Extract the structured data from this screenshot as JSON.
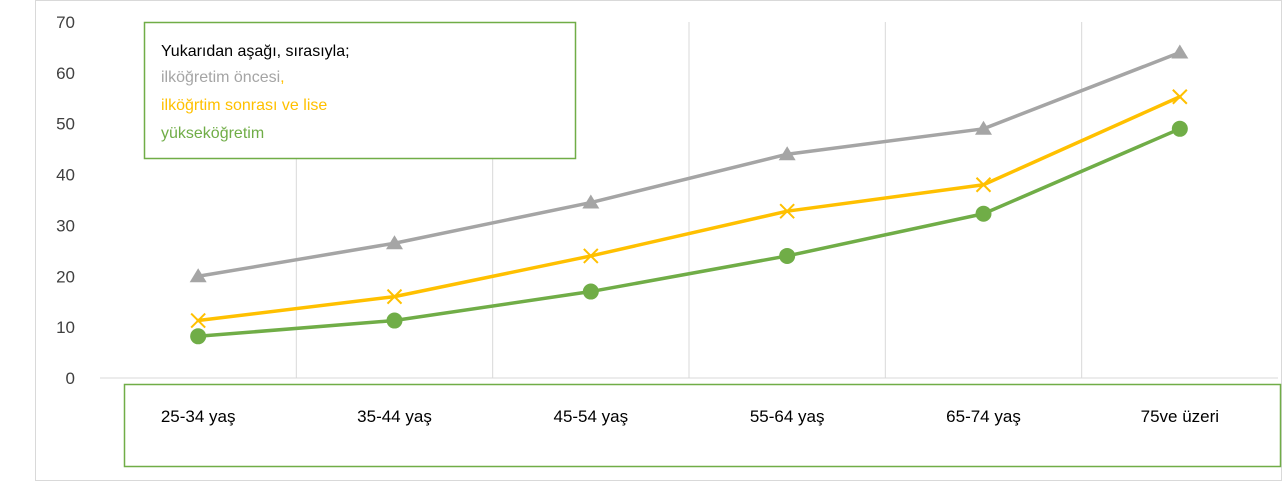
{
  "chart_data": {
    "type": "line",
    "categories": [
      "25-34 yaş",
      "35-44 yaş",
      "45-54 yaş",
      "55-64 yaş",
      "65-74 yaş",
      "75ve üzeri"
    ],
    "series": [
      {
        "values": [
          20,
          26.5,
          34.5,
          44,
          49,
          64
        ],
        "color": "#a5a5a5",
        "marker": "triangle"
      },
      {
        "values": [
          11.3,
          16,
          24,
          32.8,
          38,
          55.3
        ],
        "color": "#ffc000",
        "marker": "x"
      },
      {
        "values": [
          8.2,
          11.3,
          17,
          24,
          32.3,
          49
        ],
        "color": "#70ad47",
        "marker": "circle"
      }
    ],
    "yticks": [
      0,
      10,
      20,
      30,
      40,
      50,
      60,
      70
    ],
    "ylim": [
      0,
      70
    ],
    "grid": "vertical",
    "annotation": {
      "heading": "Yukarıdan aşağı, sırasıyla;",
      "line1": "ilköğretim öncesi",
      "line1_suffix": ",",
      "line2": "ilköğrtim sonrası ve lise",
      "line3": "yükseköğretim"
    },
    "colors": {
      "grid": "#d9d9d9",
      "box_border": "#70ad47",
      "heading": "#000000"
    }
  }
}
